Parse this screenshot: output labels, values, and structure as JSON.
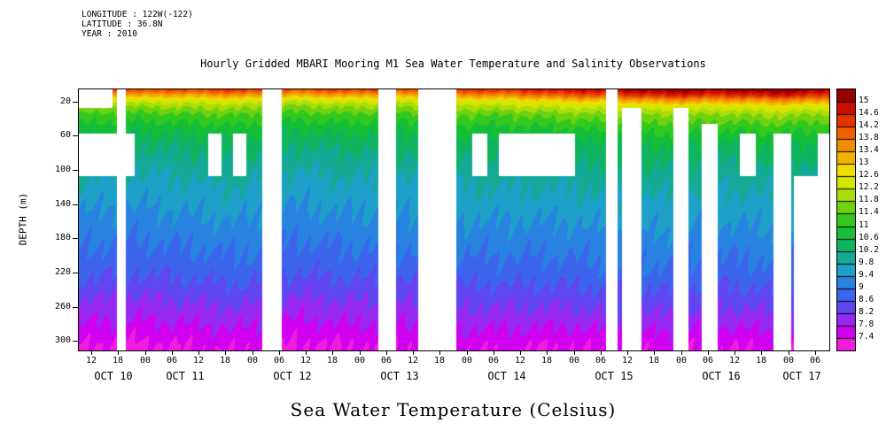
{
  "meta": {
    "longitude": "LONGITUDE : 122W(-122)",
    "latitude": "LATITUDE : 36.8N",
    "year": "YEAR : 2010"
  },
  "title": "Hourly Gridded MBARI Mooring M1 Sea Water Temperature and Salinity Observations",
  "ylabel": "DEPTH (m)",
  "caption": "Sea Water Temperature (Celsius)",
  "chart_data": {
    "type": "heatmap",
    "title": "Hourly Gridded MBARI Mooring M1 Sea Water Temperature and Salinity Observations",
    "xlabel": "",
    "ylabel": "DEPTH (m)",
    "caption": "Sea Water Temperature (Celsius)",
    "time_span_hours": 168,
    "time_start": "OCT 10 09:00 2010",
    "depth_range_m": [
      5,
      310
    ],
    "depth_ticks": [
      20,
      60,
      100,
      140,
      180,
      220,
      260,
      300
    ],
    "x_tick_start_hour": 3,
    "x_tick_step_hour": 6,
    "x_tick_labels": [
      "12",
      "18",
      "00",
      "06",
      "12",
      "18",
      "00",
      "06",
      "12",
      "18",
      "00",
      "06",
      "12",
      "18",
      "00",
      "06",
      "12",
      "18",
      "00",
      "06",
      "12",
      "18",
      "00",
      "06",
      "12",
      "18",
      "00",
      "06"
    ],
    "date_labels": [
      {
        "label": "OCT 10",
        "t": 8
      },
      {
        "label": "OCT 11",
        "t": 24
      },
      {
        "label": "OCT 12",
        "t": 48
      },
      {
        "label": "OCT 13",
        "t": 72
      },
      {
        "label": "OCT 14",
        "t": 96
      },
      {
        "label": "OCT 15",
        "t": 120
      },
      {
        "label": "OCT 16",
        "t": 144
      },
      {
        "label": "OCT 17",
        "t": 162
      }
    ],
    "x_hours": [
      0,
      12,
      24,
      36,
      48,
      60,
      72,
      84,
      96,
      108,
      120,
      132,
      144,
      156,
      168
    ],
    "depths_m": [
      5,
      12,
      18,
      25,
      35,
      50,
      70,
      100,
      140,
      180,
      220,
      260,
      305
    ],
    "temps_c": [
      [
        14.4,
        14.3,
        14.3,
        14.5,
        14.2,
        14.4,
        14.3,
        14.5,
        14.6,
        14.9,
        15.1,
        15.4,
        15.2,
        15.5,
        15.2
      ],
      [
        13.4,
        13.3,
        13.3,
        13.5,
        13.2,
        13.4,
        13.2,
        13.5,
        13.6,
        14.0,
        14.2,
        14.6,
        14.4,
        14.7,
        14.4
      ],
      [
        12.5,
        12.4,
        12.5,
        12.6,
        12.3,
        12.5,
        12.4,
        12.6,
        12.7,
        13.0,
        13.2,
        13.5,
        13.4,
        13.6,
        13.4
      ],
      [
        11.9,
        11.8,
        11.9,
        12.0,
        11.7,
        11.9,
        11.8,
        12.0,
        12.1,
        12.3,
        12.4,
        12.6,
        12.5,
        12.7,
        12.5
      ],
      [
        11.3,
        11.2,
        11.3,
        11.4,
        11.2,
        11.3,
        11.2,
        11.4,
        11.4,
        11.6,
        11.7,
        11.8,
        11.7,
        11.9,
        11.7
      ],
      [
        10.8,
        10.7,
        10.8,
        10.9,
        10.7,
        10.8,
        10.7,
        10.9,
        10.9,
        11.0,
        11.1,
        11.2,
        11.1,
        11.2,
        11.1
      ],
      [
        10.3,
        10.2,
        10.3,
        10.4,
        10.2,
        10.3,
        10.3,
        10.4,
        10.4,
        10.5,
        10.5,
        10.6,
        10.5,
        10.6,
        10.5
      ],
      [
        9.9,
        9.8,
        9.9,
        10.0,
        9.8,
        9.9,
        9.9,
        10.0,
        10.0,
        10.0,
        10.1,
        10.1,
        10.0,
        10.1,
        10.0
      ],
      [
        9.5,
        9.4,
        9.5,
        9.6,
        9.4,
        9.5,
        9.5,
        9.6,
        9.6,
        9.6,
        9.7,
        9.7,
        9.6,
        9.7,
        9.6
      ],
      [
        9.1,
        9.0,
        9.1,
        9.2,
        9.0,
        9.1,
        9.1,
        9.2,
        9.2,
        9.2,
        9.3,
        9.3,
        9.2,
        9.3,
        9.2
      ],
      [
        8.7,
        8.6,
        8.7,
        8.8,
        8.6,
        8.7,
        8.7,
        8.8,
        8.8,
        8.8,
        8.9,
        8.9,
        8.8,
        8.9,
        8.8
      ],
      [
        8.1,
        8.0,
        8.1,
        8.2,
        8.0,
        8.1,
        8.1,
        8.2,
        8.2,
        8.2,
        8.3,
        8.3,
        8.2,
        8.3,
        8.2
      ],
      [
        7.4,
        7.3,
        7.4,
        7.5,
        7.3,
        7.4,
        7.4,
        7.5,
        7.5,
        7.4,
        7.5,
        7.5,
        7.4,
        7.5,
        7.4
      ]
    ],
    "gaps": [
      {
        "t": [
          0,
          7.5
        ],
        "d": [
          5,
          27
        ]
      },
      {
        "t": [
          0,
          12.5
        ],
        "d": [
          57,
          106
        ]
      },
      {
        "t": [
          8.6,
          10.6
        ],
        "d": [
          5,
          310
        ]
      },
      {
        "t": [
          29,
          32
        ],
        "d": [
          57,
          106
        ]
      },
      {
        "t": [
          34.5,
          37.5
        ],
        "d": [
          57,
          106
        ]
      },
      {
        "t": [
          41,
          45.5
        ],
        "d": [
          5,
          310
        ]
      },
      {
        "t": [
          67,
          71
        ],
        "d": [
          5,
          310
        ]
      },
      {
        "t": [
          76,
          84.5
        ],
        "d": [
          5,
          310
        ]
      },
      {
        "t": [
          88,
          91.5
        ],
        "d": [
          57,
          106
        ]
      },
      {
        "t": [
          94,
          111
        ],
        "d": [
          57,
          106
        ]
      },
      {
        "t": [
          118,
          120.5
        ],
        "d": [
          5,
          310
        ]
      },
      {
        "t": [
          121.5,
          126
        ],
        "d": [
          27,
          310
        ]
      },
      {
        "t": [
          133,
          136.5
        ],
        "d": [
          27,
          310
        ]
      },
      {
        "t": [
          139.5,
          143
        ],
        "d": [
          45,
          310
        ]
      },
      {
        "t": [
          148,
          151.5
        ],
        "d": [
          57,
          106
        ]
      },
      {
        "t": [
          155.5,
          159.5
        ],
        "d": [
          57,
          310
        ]
      },
      {
        "t": [
          160,
          168
        ],
        "d": [
          106,
          310
        ]
      },
      {
        "t": [
          165.5,
          168
        ],
        "d": [
          57,
          310
        ]
      }
    ],
    "colorbar": {
      "levels": [
        7.4,
        7.8,
        8.2,
        8.6,
        9,
        9.4,
        9.8,
        10.2,
        10.6,
        11,
        11.4,
        11.8,
        12.2,
        12.6,
        13,
        13.4,
        13.8,
        14.2,
        14.6,
        15
      ],
      "tick_labels": [
        "15",
        "14.6",
        "14.2",
        "13.8",
        "13.4",
        "13",
        "12.6",
        "12.2",
        "11.8",
        "11.4",
        "11",
        "10.6",
        "10.2",
        "9.8",
        "9.4",
        "9",
        "8.6",
        "8.2",
        "7.8",
        "7.4"
      ],
      "colors": [
        "#f01edc",
        "#d200f0",
        "#9628f0",
        "#5f46f0",
        "#3c64ec",
        "#2882e0",
        "#1ea0c8",
        "#14aa96",
        "#0fb45f",
        "#14be37",
        "#32c81e",
        "#6ed20f",
        "#aadc0a",
        "#d2e600",
        "#f0dc00",
        "#f0b400",
        "#f08c00",
        "#f05f00",
        "#e63200",
        "#cd0f00",
        "#960000"
      ]
    }
  }
}
